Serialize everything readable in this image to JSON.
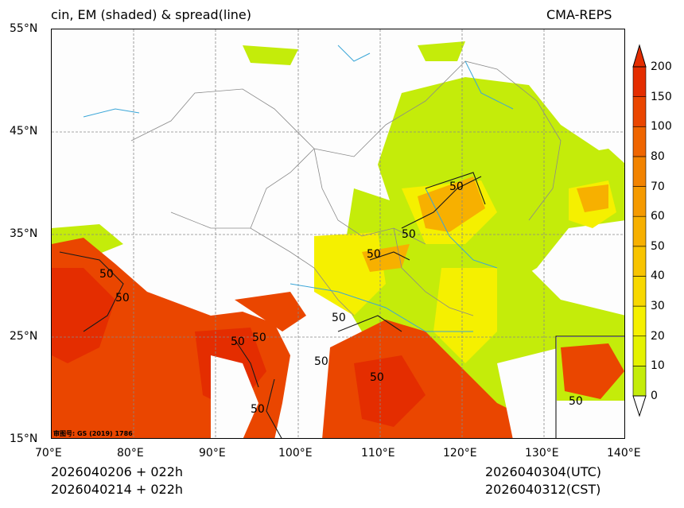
{
  "header": {
    "title_left": "cin, EM (shaded) & spread(line)",
    "title_right": "CMA-REPS"
  },
  "axes": {
    "lat_labels": [
      "55°N",
      "45°N",
      "35°N",
      "25°N",
      "15°N"
    ],
    "lon_labels": [
      "70°E",
      "80°E",
      "90°E",
      "100°E",
      "110°E",
      "120°E",
      "130°E",
      "140°E"
    ]
  },
  "colorbar": {
    "levels": [
      "0",
      "10",
      "20",
      "30",
      "40",
      "50",
      "60",
      "70",
      "80",
      "100",
      "150",
      "200"
    ],
    "colors": [
      "#c4ec0a",
      "#e4f200",
      "#f5f000",
      "#f8d800",
      "#f8c400",
      "#f7b000",
      "#f59a00",
      "#f28300",
      "#ef6500",
      "#ea4600",
      "#e42d00"
    ]
  },
  "map": {
    "credit": "审图号: GS (2019) 1786",
    "contour_labels": [
      "50",
      "50",
      "50",
      "50",
      "50",
      "50",
      "50",
      "50",
      "50",
      "50",
      "50",
      "50"
    ]
  },
  "footer": {
    "init_1": "2026040206  +  022h",
    "init_2": "2026040214  +  022h",
    "valid_utc": "2026040304(UTC)",
    "valid_cst": "2026040312(CST)"
  }
}
